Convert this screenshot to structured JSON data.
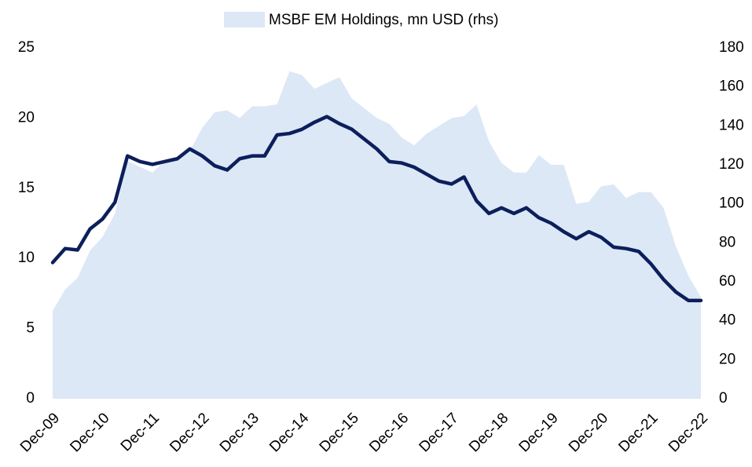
{
  "chart_data": {
    "type": "line",
    "categories": [
      "Dec-09",
      null,
      null,
      null,
      "Dec-10",
      null,
      null,
      null,
      "Dec-11",
      null,
      null,
      null,
      "Dec-12",
      null,
      null,
      null,
      "Dec-13",
      null,
      null,
      null,
      "Dec-14",
      null,
      null,
      null,
      "Dec-15",
      null,
      null,
      null,
      "Dec-16",
      null,
      null,
      null,
      "Dec-17",
      null,
      null,
      null,
      "Dec-18",
      null,
      null,
      null,
      "Dec-19",
      null,
      null,
      null,
      "Dec-20",
      null,
      null,
      null,
      "Dec-21",
      null,
      null,
      null,
      "Dec-22"
    ],
    "series": [
      {
        "name": "MSBF EM Holdings, mn USD (rhs)",
        "type": "area",
        "axis": "y2",
        "color": "#dce8f6",
        "values": [
          45,
          56,
          62,
          76,
          83,
          95,
          122,
          119,
          116,
          122,
          124,
          127,
          139,
          147,
          148,
          144,
          150,
          150,
          151,
          168,
          166,
          159,
          162,
          165,
          154,
          149,
          144,
          141,
          134,
          130,
          136,
          140,
          144,
          145,
          151,
          132,
          121,
          116,
          116,
          125,
          120,
          120,
          100,
          101,
          109,
          110,
          103,
          106,
          106,
          98,
          78,
          63,
          52
        ]
      },
      {
        "type": "line",
        "color": "#0c1f5b",
        "values": [
          9.7,
          10.7,
          10.6,
          12.1,
          12.8,
          14.0,
          17.3,
          16.9,
          16.7,
          16.9,
          17.1,
          17.8,
          17.3,
          16.6,
          16.3,
          17.1,
          17.3,
          17.3,
          18.8,
          18.9,
          19.2,
          19.7,
          20.1,
          19.6,
          19.2,
          18.5,
          17.8,
          16.9,
          16.8,
          16.5,
          16.0,
          15.5,
          15.3,
          15.8,
          14.1,
          13.2,
          13.6,
          13.2,
          13.6,
          12.9,
          12.5,
          11.9,
          11.4,
          11.9,
          11.5,
          10.8,
          10.7,
          10.5,
          9.6,
          8.5,
          7.6,
          7.0,
          7.0
        ]
      }
    ],
    "ylim": [
      0,
      25
    ],
    "yticks": [
      0,
      5,
      10,
      15,
      20,
      25
    ],
    "y2lim": [
      0,
      180
    ],
    "y2ticks": [
      0,
      20,
      40,
      60,
      80,
      100,
      120,
      140,
      160,
      180
    ],
    "grid": false,
    "legend": "top"
  }
}
